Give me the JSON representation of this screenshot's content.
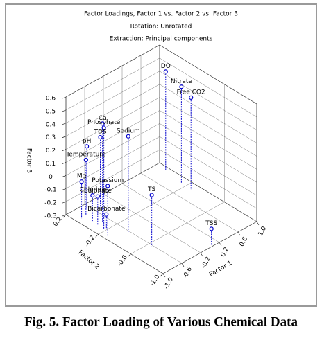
{
  "chart_data": {
    "type": "scatter3d",
    "title": "Factor Loadings, Factor 1 vs. Factor 2 vs. Factor 3",
    "subtitle": [
      "Rotation: Unrotated",
      "Extraction: Principal components"
    ],
    "caption": "Fig. 5. Factor Loading of Various Chemical Data",
    "xlabel": "Factor 1",
    "ylabel": "Factor 2",
    "zlabel": "Factor 3",
    "labels": [
      "DO",
      "Nitrate",
      "Free CO2",
      "TS",
      "TSS",
      "Sodium",
      "Ca",
      "Phosphate",
      "TDS",
      "pH",
      "Temperature",
      "Mg",
      "Potassium",
      "Chloride",
      "Sulphate",
      "Bicarbonate"
    ],
    "x": [
      0.94,
      0.86,
      0.84,
      -0.62,
      0.05,
      -0.62,
      -0.72,
      -0.83,
      -0.49,
      -0.64,
      -0.78,
      -0.89,
      -0.92,
      -0.83,
      -0.84,
      -0.81
    ],
    "y": [
      0.09,
      -0.15,
      -0.28,
      -0.64,
      -0.99,
      -0.35,
      -0.09,
      -0.17,
      0.07,
      0.15,
      0.08,
      0.07,
      -0.27,
      -0.03,
      -0.1,
      -0.19
    ],
    "z": [
      0.45,
      0.44,
      0.41,
      0.09,
      -0.17,
      0.43,
      0.45,
      0.47,
      0.24,
      0.17,
      0.12,
      -0.02,
      0.08,
      -0.1,
      -0.08,
      -0.19
    ],
    "color": "#0000cc",
    "xlim": [
      -1.0,
      1.0
    ],
    "xticks": [
      {
        "value": -1.0,
        "label": "-1.0"
      },
      -0.6,
      -0.2,
      0.2,
      0.6,
      {
        "value": 1.0,
        "label": "1.0"
      }
    ],
    "ylim": [
      -1.0,
      0.2
    ],
    "yticks": [
      {
        "value": -1.0,
        "label": "-1.0"
      },
      -0.6,
      -0.2,
      0.2
    ],
    "zlim": [
      -0.3,
      0.6
    ],
    "zticks": [
      -0.3,
      -0.2,
      -0.1,
      0,
      0.1,
      0.2,
      0.3,
      0.4,
      0.5,
      0.6
    ],
    "grid": true
  }
}
